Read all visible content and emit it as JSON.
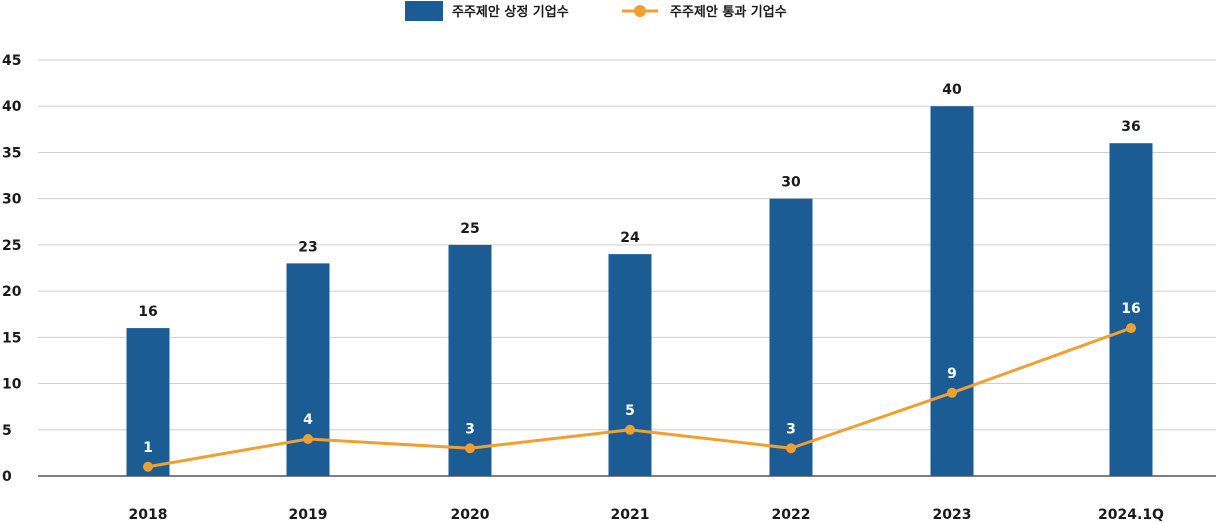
{
  "chart_data": {
    "type": "bar",
    "categories": [
      "2018",
      "2019",
      "2020",
      "2021",
      "2022",
      "2023",
      "2024.1Q"
    ],
    "series": [
      {
        "name": "주주제안 상정 기업수",
        "type": "bar",
        "values": [
          16,
          23,
          25,
          24,
          30,
          40,
          36
        ],
        "labels": [
          "16",
          "23",
          "25",
          "24",
          "30",
          "40",
          "36"
        ],
        "color": "#1b5c94"
      },
      {
        "name": "주주제안 통과 기업수",
        "type": "line",
        "values": [
          1,
          4,
          3,
          5,
          3,
          9,
          16
        ],
        "labels": [
          "1",
          "4",
          "3",
          "5",
          "3",
          "9",
          "16"
        ],
        "color": "#f0a030"
      }
    ],
    "ylim": [
      0,
      45
    ],
    "yticks": [
      "0",
      "5",
      "10",
      "15",
      "20",
      "25",
      "30",
      "35",
      "40",
      "45"
    ],
    "grid": true,
    "legend_position": "top-center"
  }
}
